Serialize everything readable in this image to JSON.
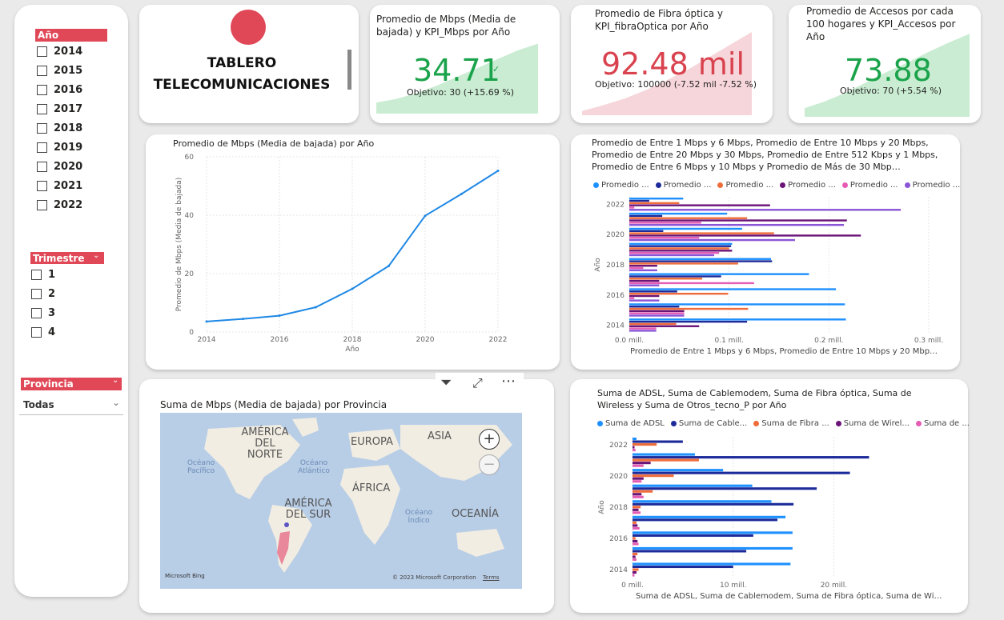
{
  "colors": {
    "accent": "#e04857",
    "positive": "#1aa34a",
    "negative": "#d9434f",
    "line": "#1e88e5"
  },
  "year_slicer": {
    "header": "Año",
    "items": [
      "2014",
      "2015",
      "2016",
      "2017",
      "2018",
      "2019",
      "2020",
      "2021",
      "2022"
    ]
  },
  "quarter_slicer": {
    "header": "Trimestre",
    "items": [
      "1",
      "2",
      "3",
      "4"
    ]
  },
  "province_slicer": {
    "header": "Provincia",
    "value": "Todas"
  },
  "title_card": {
    "line1": "TABLERO",
    "line2": "TELECOMUNICACIONES"
  },
  "kpi": [
    {
      "title": "Promedio de Mbps (Media de bajada) y KPI_Mbps por Año",
      "value": "34.71",
      "goal": "Objetivo: 30 (+15.69 %)",
      "status": "positive",
      "trend": [
        0.15,
        0.2,
        0.28,
        0.38,
        0.5,
        0.62,
        0.74,
        0.86,
        0.95
      ]
    },
    {
      "title": "Promedio de Fibra óptica y KPI_fibraOptica por Año",
      "value": "92.48 mil",
      "goal": "Objetivo: 100000 (-7.52 mil -7.52 %)",
      "status": "negative",
      "trend": [
        0.05,
        0.12,
        0.2,
        0.3,
        0.42,
        0.55,
        0.7,
        0.85,
        1.0
      ]
    },
    {
      "title": "Promedio de Accesos por cada 100 hogares y KPI_Accesos por Año",
      "value": "73.88",
      "goal": "Objetivo: 70 (+5.54 %)",
      "status": "positive",
      "trend": [
        0.1,
        0.18,
        0.28,
        0.4,
        0.52,
        0.63,
        0.75,
        0.86,
        0.96
      ]
    }
  ],
  "line_chart": {
    "title": "Promedio de Mbps (Media de bajada) por Año"
  },
  "bar_chart1": {
    "title": "Promedio de Entre 1 Mbps y 6 Mbps, Promedio de Entre 10 Mbps y 20 Mbps, Promedio de Entre 20 Mbps y 30 Mbps, Promedio de Entre 512 Kbps y 1 Mbps, Promedio de Entre 6 Mbps y 10 Mbps y Promedio de Más de 30 Mbp…",
    "legend": [
      "Promedio ...",
      "Promedio ...",
      "Promedio ...",
      "Promedio ...",
      "Promedio ...",
      "Promedio ..."
    ]
  },
  "bar_chart2": {
    "title": "Suma de ADSL, Suma de Cablemodem, Suma de Fibra óptica, Suma de Wireless y Suma de Otros_tecno_P por Año",
    "legend": [
      "Suma de ADSL",
      "Suma de Cable...",
      "Suma de Fibra ...",
      "Suma de Wirel...",
      "Suma de ..."
    ]
  },
  "map": {
    "title": "Suma de Mbps (Media de bajada) por Provincia",
    "labels": [
      "AMÉRICA DEL NORTE",
      "EUROPA",
      "ASIA",
      "ÁFRICA",
      "AMÉRICA DEL SUR",
      "OCEANÍA"
    ],
    "oceans": [
      "Océano Pacífico",
      "Océano Atlántico",
      "Océano Índico"
    ],
    "credit": "© 2023 Microsoft Corporation",
    "terms": "Terms",
    "brand": "Microsoft Bing"
  },
  "chart_data": [
    {
      "type": "line",
      "title": "Promedio de Mbps (Media de bajada) por Año",
      "xlabel": "Año",
      "ylabel": "Promedio de Mbps (Media de bajada)",
      "x": [
        2014,
        2015,
        2016,
        2017,
        2018,
        2019,
        2020,
        2021,
        2022
      ],
      "y": [
        3.6,
        4.5,
        5.6,
        8.5,
        14.8,
        22.6,
        39.8,
        47.3,
        55.2
      ],
      "xticks": [
        "2014",
        "2016",
        "2018",
        "2020",
        "2022"
      ],
      "yticks": [
        "0",
        "20",
        "40",
        "60"
      ],
      "ylim": [
        0,
        60
      ],
      "xlim": [
        2014,
        2022
      ]
    },
    {
      "type": "bar",
      "xlabel": "Promedio de Entre 1 Mbps y 6 Mbps, Promedio de Entre 10 Mbps y 20 Mbp…",
      "ylabel": "Año",
      "xticks": [
        "0.0 mill.",
        "0.1 mill.",
        "0.2 mill.",
        "0.3 mill."
      ],
      "yticks": [
        "2014",
        "2016",
        "2018",
        "2020",
        "2022"
      ],
      "xlim": [
        0,
        0.3
      ],
      "categories": [
        "2022",
        "2021",
        "2020",
        "2019",
        "2018",
        "2017",
        "2016",
        "2015",
        "2014"
      ],
      "series": [
        {
          "values": [
            0.054,
            0.098,
            0.113,
            0.103,
            0.142,
            0.18,
            0.207,
            0.216,
            0.217
          ]
        },
        {
          "values": [
            0.02,
            0.033,
            0.034,
            0.102,
            0.143,
            0.092,
            0.048,
            0.05,
            0.118
          ]
        },
        {
          "values": [
            0.05,
            0.118,
            0.145,
            0.1,
            0.109,
            0.073,
            0.099,
            0.119,
            0.047
          ]
        },
        {
          "values": [
            0.141,
            0.218,
            0.232,
            0.103,
            0.028,
            0.03,
            0.03,
            0.055,
            0.07
          ]
        },
        {
          "values": [
            0.005,
            0.072,
            0.07,
            0.09,
            0.014,
            0.125,
            0.005,
            0.055,
            0.027
          ]
        },
        {
          "values": [
            0.272,
            0.215,
            0.166,
            0.085,
            0.028,
            0.03,
            0.03,
            0.055,
            0.027
          ]
        }
      ]
    },
    {
      "type": "bar",
      "xlabel": "Suma de ADSL, Suma de Cablemodem, Suma de Fibra óptica, Suma de Wi…",
      "ylabel": "Año",
      "xticks": [
        "0 mill.",
        "10 mill.",
        "20 mill."
      ],
      "yticks": [
        "2014",
        "2016",
        "2018",
        "2020",
        "2022"
      ],
      "xlim": [
        0,
        28
      ],
      "categories": [
        "2022",
        "2021",
        "2020",
        "2019",
        "2018",
        "2017",
        "2016",
        "2015",
        "2014"
      ],
      "series": [
        {
          "values": [
            0.4,
            6.2,
            9.0,
            11.9,
            13.8,
            15.2,
            15.9,
            15.9,
            15.7
          ]
        },
        {
          "values": [
            5.0,
            23.5,
            21.6,
            18.3,
            16.0,
            14.4,
            12.0,
            11.3,
            10.0
          ]
        },
        {
          "values": [
            2.4,
            6.6,
            4.1,
            2.0,
            0.8,
            0.4,
            0.3,
            0.5,
            0.6
          ]
        },
        {
          "values": [
            0.2,
            1.8,
            1.1,
            0.9,
            0.6,
            0.5,
            0.5,
            0.3,
            0.4
          ]
        },
        {
          "values": [
            0.3,
            1.1,
            0.9,
            1.1,
            0.8,
            0.7,
            0.6,
            0.4,
            0.2
          ]
        }
      ]
    }
  ]
}
